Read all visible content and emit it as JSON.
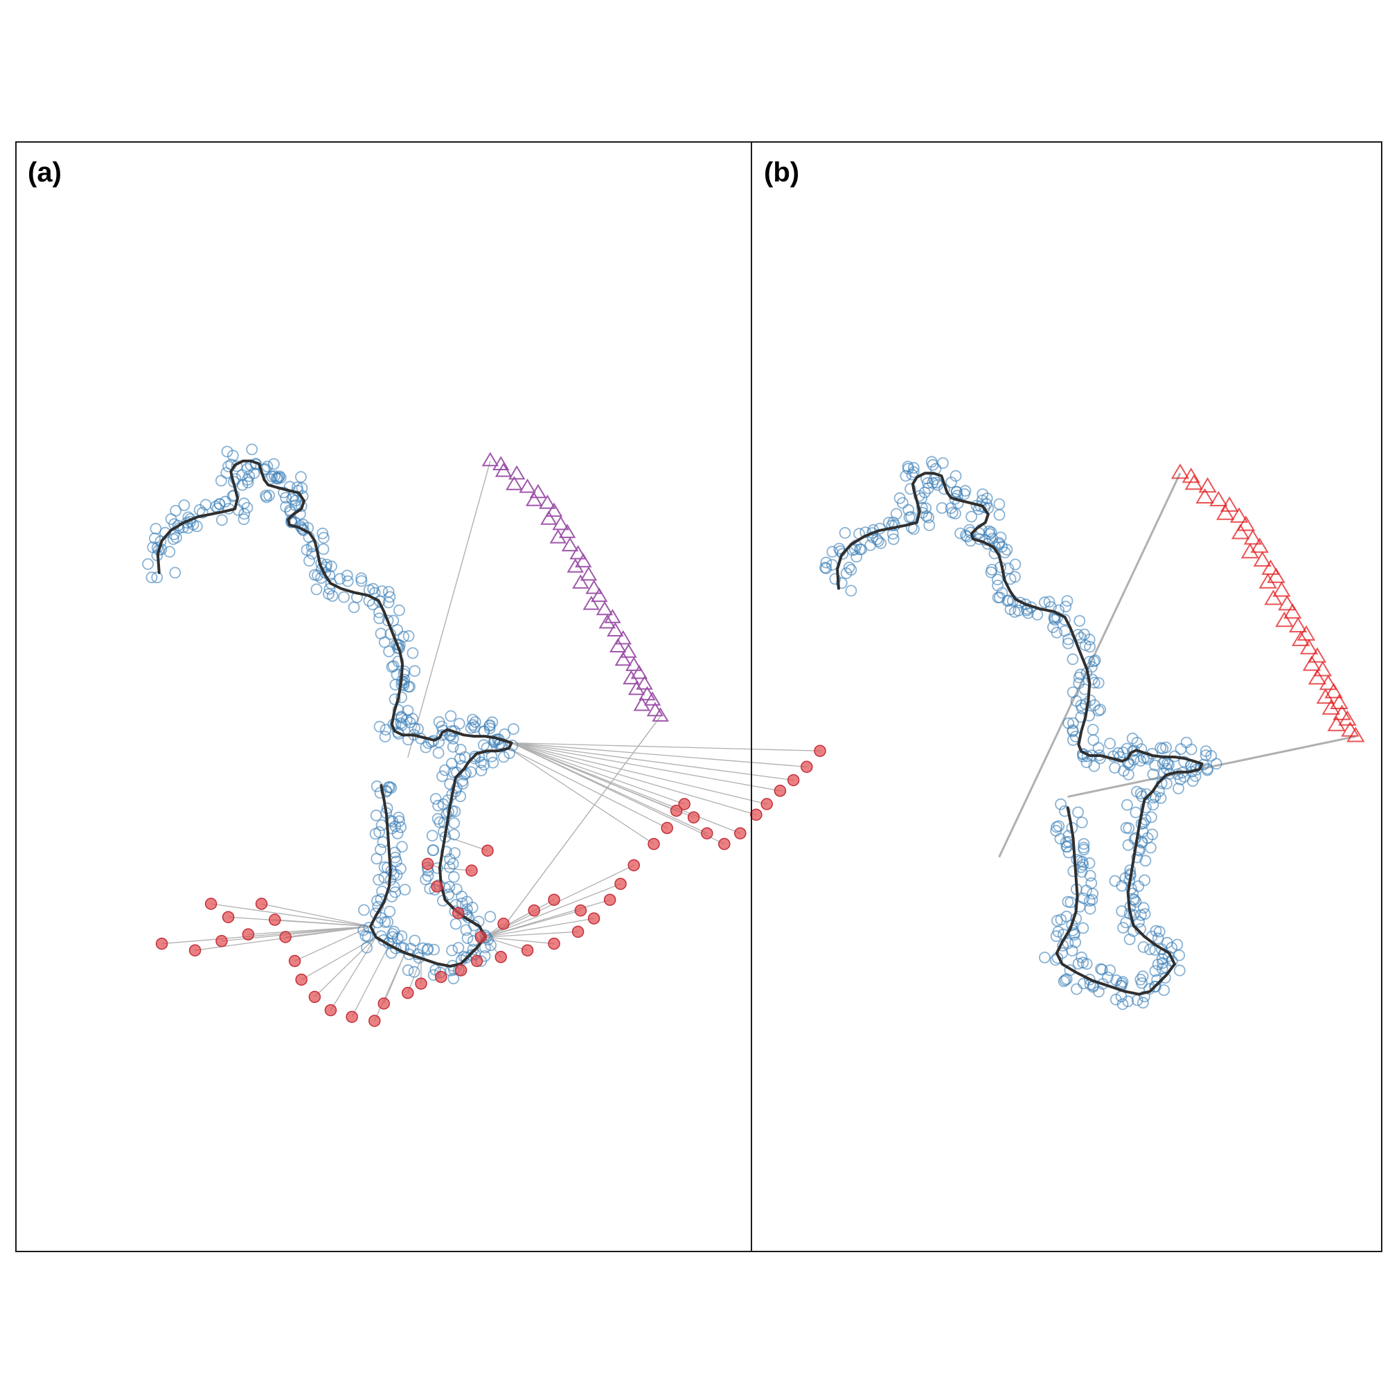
{
  "colors": {
    "track": "#2f2f2f",
    "observation": "#3a7fb8",
    "outlier": "#e34a4f",
    "cluster_a": "#9a4fa5",
    "cluster_b": "#e31a1c",
    "link": "#b0b0b0",
    "frame": "#1a1a1a"
  },
  "chart_data": [
    {
      "panel": "a",
      "label": "(a)",
      "type": "scatter",
      "title": "",
      "xlabel": "",
      "ylabel": "",
      "axes_visible": false,
      "grid": false,
      "legend": "none",
      "track": [
        [
          3,
          126
        ],
        [
          2,
          112
        ],
        [
          5,
          102
        ],
        [
          12,
          94
        ],
        [
          22,
          88
        ],
        [
          32,
          84
        ],
        [
          42,
          82
        ],
        [
          52,
          80
        ],
        [
          60,
          78
        ],
        [
          62,
          70
        ],
        [
          60,
          62
        ],
        [
          58,
          55
        ],
        [
          57,
          50
        ],
        [
          60,
          45
        ],
        [
          66,
          42
        ],
        [
          72,
          42
        ],
        [
          78,
          44
        ],
        [
          80,
          50
        ],
        [
          82,
          56
        ],
        [
          85,
          60
        ],
        [
          92,
          62
        ],
        [
          100,
          64
        ],
        [
          108,
          66
        ],
        [
          112,
          72
        ],
        [
          110,
          78
        ],
        [
          104,
          82
        ],
        [
          100,
          86
        ],
        [
          101,
          90
        ],
        [
          108,
          92
        ],
        [
          116,
          96
        ],
        [
          120,
          102
        ],
        [
          122,
          110
        ],
        [
          124,
          120
        ],
        [
          128,
          128
        ],
        [
          132,
          134
        ],
        [
          140,
          138
        ],
        [
          150,
          141
        ],
        [
          160,
          143
        ],
        [
          168,
          147
        ],
        [
          172,
          155
        ],
        [
          176,
          165
        ],
        [
          180,
          175
        ],
        [
          184,
          185
        ],
        [
          186,
          195
        ],
        [
          185,
          208
        ],
        [
          183,
          220
        ],
        [
          180,
          230
        ],
        [
          178,
          240
        ],
        [
          180,
          245
        ],
        [
          186,
          248
        ],
        [
          194,
          248
        ],
        [
          202,
          250
        ],
        [
          210,
          252
        ],
        [
          214,
          250
        ],
        [
          216,
          246
        ],
        [
          220,
          244
        ],
        [
          226,
          246
        ],
        [
          232,
          248
        ],
        [
          240,
          249
        ],
        [
          248,
          249
        ],
        [
          255,
          250
        ],
        [
          262,
          252
        ],
        [
          268,
          254
        ],
        [
          266,
          258
        ],
        [
          258,
          260
        ],
        [
          250,
          260
        ],
        [
          242,
          262
        ],
        [
          236,
          268
        ],
        [
          232,
          274
        ],
        [
          226,
          280
        ],
        [
          224,
          290
        ],
        [
          222,
          300
        ],
        [
          220,
          312
        ],
        [
          218,
          324
        ],
        [
          216,
          336
        ],
        [
          214,
          348
        ],
        [
          215,
          360
        ],
        [
          218,
          372
        ],
        [
          226,
          380
        ],
        [
          234,
          386
        ],
        [
          244,
          392
        ],
        [
          248,
          400
        ],
        [
          242,
          408
        ],
        [
          236,
          414
        ],
        [
          230,
          420
        ],
        [
          222,
          422
        ],
        [
          212,
          420
        ],
        [
          200,
          416
        ],
        [
          188,
          412
        ],
        [
          176,
          406
        ],
        [
          166,
          400
        ],
        [
          162,
          392
        ],
        [
          166,
          384
        ],
        [
          172,
          374
        ],
        [
          176,
          362
        ],
        [
          177,
          350
        ],
        [
          176,
          336
        ],
        [
          175,
          322
        ],
        [
          174,
          308
        ],
        [
          172,
          296
        ],
        [
          170,
          286
        ]
      ],
      "observations_follow": "track",
      "outliers": [
        [
          5,
          405
        ],
        [
          30,
          410
        ],
        [
          50,
          403
        ],
        [
          70,
          398
        ],
        [
          42,
          375
        ],
        [
          55,
          385
        ],
        [
          80,
          375
        ],
        [
          90,
          387
        ],
        [
          98,
          400
        ],
        [
          105,
          418
        ],
        [
          110,
          432
        ],
        [
          120,
          445
        ],
        [
          132,
          455
        ],
        [
          148,
          460
        ],
        [
          165,
          463
        ],
        [
          172,
          450
        ],
        [
          190,
          442
        ],
        [
          200,
          435
        ],
        [
          215,
          430
        ],
        [
          230,
          425
        ],
        [
          242,
          418
        ],
        [
          260,
          415
        ],
        [
          280,
          410
        ],
        [
          300,
          405
        ],
        [
          318,
          396
        ],
        [
          330,
          386
        ],
        [
          342,
          372
        ],
        [
          350,
          360
        ],
        [
          360,
          346
        ],
        [
          375,
          330
        ],
        [
          385,
          318
        ],
        [
          392,
          305
        ],
        [
          398,
          300
        ],
        [
          405,
          310
        ],
        [
          415,
          322
        ],
        [
          428,
          330
        ],
        [
          440,
          322
        ],
        [
          452,
          308
        ],
        [
          460,
          300
        ],
        [
          470,
          290
        ],
        [
          480,
          282
        ],
        [
          490,
          272
        ],
        [
          500,
          260
        ],
        [
          320,
          380
        ],
        [
          300,
          372
        ],
        [
          285,
          380
        ],
        [
          262,
          390
        ],
        [
          245,
          400
        ],
        [
          228,
          382
        ],
        [
          212,
          362
        ],
        [
          205,
          345
        ],
        [
          238,
          350
        ],
        [
          250,
          335
        ]
      ],
      "cluster": {
        "marker": "triangle",
        "points": [
          [
            252,
            42
          ],
          [
            260,
            45
          ],
          [
            262,
            50
          ],
          [
            272,
            52
          ],
          [
            270,
            60
          ],
          [
            280,
            62
          ],
          [
            288,
            66
          ],
          [
            285,
            72
          ],
          [
            295,
            74
          ],
          [
            300,
            80
          ],
          [
            296,
            86
          ],
          [
            305,
            90
          ],
          [
            310,
            96
          ],
          [
            303,
            100
          ],
          [
            312,
            106
          ],
          [
            318,
            112
          ],
          [
            322,
            118
          ],
          [
            316,
            122
          ],
          [
            326,
            128
          ],
          [
            320,
            134
          ],
          [
            330,
            138
          ],
          [
            334,
            144
          ],
          [
            328,
            150
          ],
          [
            338,
            154
          ],
          [
            344,
            160
          ],
          [
            340,
            164
          ],
          [
            346,
            170
          ],
          [
            352,
            176
          ],
          [
            348,
            182
          ],
          [
            356,
            186
          ],
          [
            352,
            192
          ],
          [
            360,
            196
          ],
          [
            364,
            202
          ],
          [
            358,
            206
          ],
          [
            368,
            210
          ],
          [
            362,
            214
          ],
          [
            370,
            218
          ],
          [
            374,
            222
          ],
          [
            366,
            226
          ],
          [
            376,
            230
          ],
          [
            380,
            234
          ]
        ],
        "links": [
          [
            [
              252,
              42
            ],
            [
              190,
              265
            ]
          ],
          [
            [
              380,
              234
            ],
            [
              260,
              395
            ]
          ]
        ]
      }
    },
    {
      "panel": "b",
      "label": "(b)",
      "type": "scatter",
      "title": "",
      "xlabel": "",
      "ylabel": "",
      "axes_visible": false,
      "grid": false,
      "legend": "none",
      "track": [
        [
          3,
          126
        ],
        [
          2,
          112
        ],
        [
          5,
          102
        ],
        [
          12,
          94
        ],
        [
          22,
          88
        ],
        [
          32,
          84
        ],
        [
          42,
          82
        ],
        [
          52,
          80
        ],
        [
          60,
          78
        ],
        [
          62,
          70
        ],
        [
          60,
          62
        ],
        [
          58,
          55
        ],
        [
          57,
          50
        ],
        [
          60,
          45
        ],
        [
          66,
          42
        ],
        [
          72,
          42
        ],
        [
          78,
          44
        ],
        [
          80,
          50
        ],
        [
          82,
          56
        ],
        [
          85,
          60
        ],
        [
          92,
          62
        ],
        [
          100,
          64
        ],
        [
          108,
          66
        ],
        [
          112,
          72
        ],
        [
          110,
          78
        ],
        [
          104,
          82
        ],
        [
          100,
          86
        ],
        [
          101,
          90
        ],
        [
          108,
          92
        ],
        [
          116,
          96
        ],
        [
          120,
          102
        ],
        [
          122,
          110
        ],
        [
          124,
          120
        ],
        [
          128,
          128
        ],
        [
          132,
          134
        ],
        [
          140,
          138
        ],
        [
          150,
          141
        ],
        [
          160,
          143
        ],
        [
          168,
          147
        ],
        [
          172,
          155
        ],
        [
          176,
          165
        ],
        [
          180,
          175
        ],
        [
          184,
          185
        ],
        [
          186,
          195
        ],
        [
          185,
          208
        ],
        [
          183,
          220
        ],
        [
          180,
          230
        ],
        [
          178,
          240
        ],
        [
          180,
          245
        ],
        [
          186,
          248
        ],
        [
          194,
          248
        ],
        [
          202,
          250
        ],
        [
          210,
          252
        ],
        [
          214,
          250
        ],
        [
          216,
          246
        ],
        [
          220,
          244
        ],
        [
          226,
          246
        ],
        [
          232,
          248
        ],
        [
          240,
          249
        ],
        [
          248,
          249
        ],
        [
          255,
          250
        ],
        [
          262,
          252
        ],
        [
          268,
          254
        ],
        [
          266,
          258
        ],
        [
          258,
          260
        ],
        [
          250,
          260
        ],
        [
          242,
          262
        ],
        [
          236,
          268
        ],
        [
          232,
          274
        ],
        [
          226,
          280
        ],
        [
          224,
          290
        ],
        [
          222,
          300
        ],
        [
          220,
          312
        ],
        [
          218,
          324
        ],
        [
          216,
          336
        ],
        [
          214,
          348
        ],
        [
          215,
          360
        ],
        [
          218,
          372
        ],
        [
          226,
          380
        ],
        [
          234,
          386
        ],
        [
          244,
          392
        ],
        [
          248,
          400
        ],
        [
          242,
          408
        ],
        [
          236,
          414
        ],
        [
          230,
          420
        ],
        [
          222,
          422
        ],
        [
          212,
          420
        ],
        [
          200,
          416
        ],
        [
          188,
          412
        ],
        [
          176,
          406
        ],
        [
          166,
          400
        ],
        [
          162,
          392
        ],
        [
          166,
          384
        ],
        [
          172,
          374
        ],
        [
          176,
          362
        ],
        [
          177,
          350
        ],
        [
          176,
          336
        ],
        [
          175,
          322
        ],
        [
          174,
          308
        ],
        [
          172,
          296
        ],
        [
          170,
          286
        ]
      ],
      "observations_follow": "track",
      "outliers": [],
      "cluster": {
        "marker": "triangle",
        "points": [
          [
            252,
            42
          ],
          [
            260,
            45
          ],
          [
            262,
            50
          ],
          [
            272,
            52
          ],
          [
            270,
            60
          ],
          [
            280,
            62
          ],
          [
            288,
            66
          ],
          [
            285,
            72
          ],
          [
            295,
            74
          ],
          [
            300,
            80
          ],
          [
            296,
            86
          ],
          [
            305,
            90
          ],
          [
            310,
            96
          ],
          [
            303,
            100
          ],
          [
            312,
            106
          ],
          [
            318,
            112
          ],
          [
            322,
            118
          ],
          [
            316,
            122
          ],
          [
            326,
            128
          ],
          [
            320,
            134
          ],
          [
            330,
            138
          ],
          [
            334,
            144
          ],
          [
            328,
            150
          ],
          [
            338,
            154
          ],
          [
            344,
            160
          ],
          [
            340,
            164
          ],
          [
            346,
            170
          ],
          [
            352,
            176
          ],
          [
            348,
            182
          ],
          [
            356,
            186
          ],
          [
            352,
            192
          ],
          [
            360,
            196
          ],
          [
            364,
            202
          ],
          [
            358,
            206
          ],
          [
            368,
            210
          ],
          [
            362,
            214
          ],
          [
            370,
            218
          ],
          [
            374,
            222
          ],
          [
            366,
            226
          ],
          [
            376,
            230
          ],
          [
            380,
            234
          ]
        ],
        "links": [
          [
            [
              252,
              42
            ],
            [
              120,
              322
            ]
          ],
          [
            [
              380,
              234
            ],
            [
              170,
              278
            ]
          ]
        ]
      }
    }
  ]
}
